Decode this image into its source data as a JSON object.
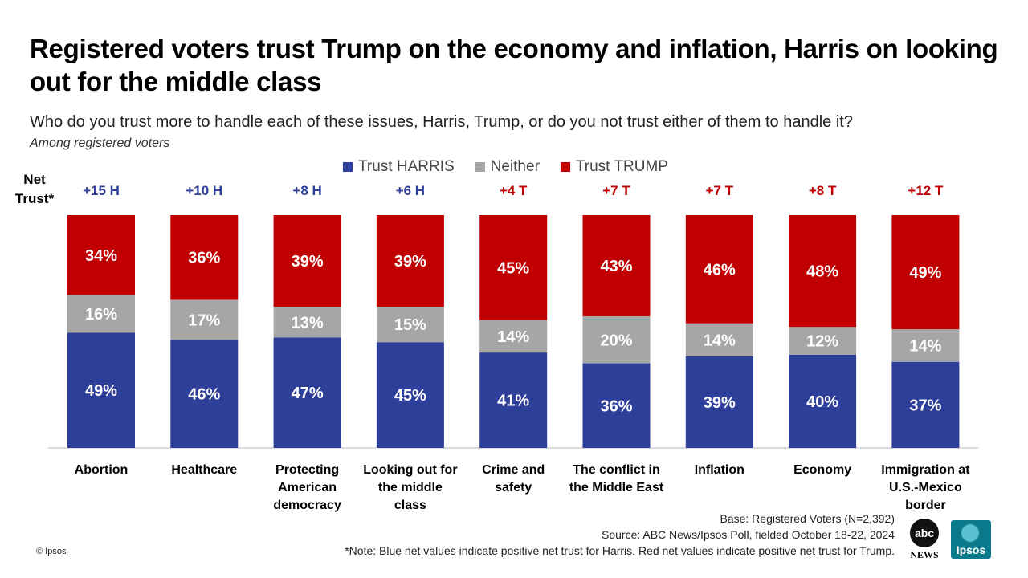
{
  "title": "Registered voters trust Trump on the economy and inflation, Harris on looking out for the middle class",
  "subtitle": "Who do you trust more to handle each of these issues, Harris, Trump, or do you not trust either of them to handle it?",
  "population": "Among registered voters",
  "net_label": "Net Trust*",
  "footer": {
    "base": "Base: Registered Voters (N=2,392)",
    "source": "Source: ABC News/Ipsos Poll, fielded October 18-22, 2024",
    "note": "*Note: Blue net values indicate positive net trust for Harris. Red net values indicate positive net trust for Trump.",
    "copyright": "© Ipsos"
  },
  "logos": {
    "abc": "abc",
    "abc_news": "NEWS",
    "ipsos": "Ipsos"
  },
  "colors": {
    "harris": "#2e3f9a",
    "neither": "#a6a6a6",
    "trump": "#c00000",
    "harris_net": "#2e3f9a",
    "trump_net": "#c00000"
  },
  "chart_data": {
    "type": "bar",
    "stacked": true,
    "legend": [
      "Trust HARRIS",
      "Neither",
      "Trust TRUMP"
    ],
    "categories": [
      "Abortion",
      "Healthcare",
      "Protecting American democracy",
      "Looking out for the middle class",
      "Crime and safety",
      "The conflict in the Middle East",
      "Inflation",
      "Economy",
      "Immigration at U.S.-Mexico border"
    ],
    "category_lines": [
      [
        "Abortion"
      ],
      [
        "Healthcare"
      ],
      [
        "Protecting",
        "American",
        "democracy"
      ],
      [
        "Looking out for",
        "the middle",
        "class"
      ],
      [
        "Crime and",
        "safety"
      ],
      [
        "The conflict in",
        "the Middle East"
      ],
      [
        "Inflation"
      ],
      [
        "Economy"
      ],
      [
        "Immigration at",
        "U.S.-Mexico",
        "border"
      ]
    ],
    "series": [
      {
        "name": "Trust HARRIS",
        "values": [
          49,
          46,
          47,
          45,
          41,
          36,
          39,
          40,
          37
        ]
      },
      {
        "name": "Neither",
        "values": [
          16,
          17,
          13,
          15,
          14,
          20,
          14,
          12,
          14
        ]
      },
      {
        "name": "Trust TRUMP",
        "values": [
          34,
          36,
          39,
          39,
          45,
          43,
          46,
          48,
          49
        ]
      }
    ],
    "data_labels": {
      "Trust HARRIS": [
        "49%",
        "46%",
        "47%",
        "45%",
        "41%",
        "36%",
        "39%",
        "40%",
        "37%"
      ],
      "Neither": [
        "16%",
        "17%",
        "13%",
        "15%",
        "14%",
        "20%",
        "14%",
        "12%",
        "14%"
      ],
      "Trust TRUMP": [
        "34%",
        "36%",
        "39%",
        "39%",
        "45%",
        "43%",
        "46%",
        "48%",
        "49%"
      ]
    },
    "net_trust": [
      "+15 H",
      "+10 H",
      "+8 H",
      "+6 H",
      "+4 T",
      "+7 T",
      "+7 T",
      "+8 T",
      "+12 T"
    ],
    "net_party": [
      "H",
      "H",
      "H",
      "H",
      "T",
      "T",
      "T",
      "T",
      "T"
    ],
    "ylim": [
      0,
      100
    ]
  }
}
